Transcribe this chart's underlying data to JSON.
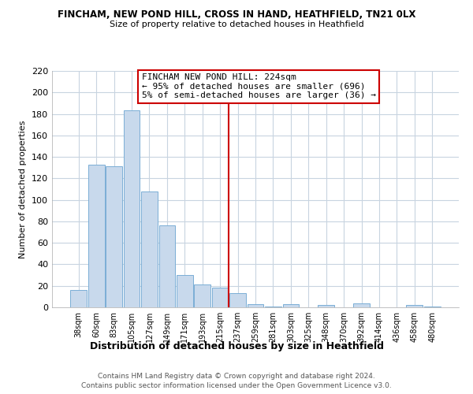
{
  "title": "FINCHAM, NEW POND HILL, CROSS IN HAND, HEATHFIELD, TN21 0LX",
  "subtitle": "Size of property relative to detached houses in Heathfield",
  "xlabel": "Distribution of detached houses by size in Heathfield",
  "ylabel": "Number of detached properties",
  "bar_color": "#c8d9ec",
  "bar_edge_color": "#7aaed6",
  "categories": [
    "38sqm",
    "60sqm",
    "83sqm",
    "105sqm",
    "127sqm",
    "149sqm",
    "171sqm",
    "193sqm",
    "215sqm",
    "237sqm",
    "259sqm",
    "281sqm",
    "303sqm",
    "325sqm",
    "348sqm",
    "370sqm",
    "392sqm",
    "414sqm",
    "436sqm",
    "458sqm",
    "480sqm"
  ],
  "values": [
    16,
    133,
    131,
    183,
    108,
    76,
    30,
    21,
    18,
    13,
    3,
    1,
    3,
    0,
    2,
    0,
    4,
    0,
    0,
    2,
    1
  ],
  "ylim": [
    0,
    220
  ],
  "yticks": [
    0,
    20,
    40,
    60,
    80,
    100,
    120,
    140,
    160,
    180,
    200,
    220
  ],
  "vline_x": 8.5,
  "vline_color": "#cc0000",
  "annotation_title": "FINCHAM NEW POND HILL: 224sqm",
  "annotation_line1": "← 95% of detached houses are smaller (696)",
  "annotation_line2": "5% of semi-detached houses are larger (36) →",
  "annotation_box_color": "#cc0000",
  "footer_line1": "Contains HM Land Registry data © Crown copyright and database right 2024.",
  "footer_line2": "Contains public sector information licensed under the Open Government Licence v3.0.",
  "background_color": "#ffffff",
  "grid_color": "#c8d4e0"
}
